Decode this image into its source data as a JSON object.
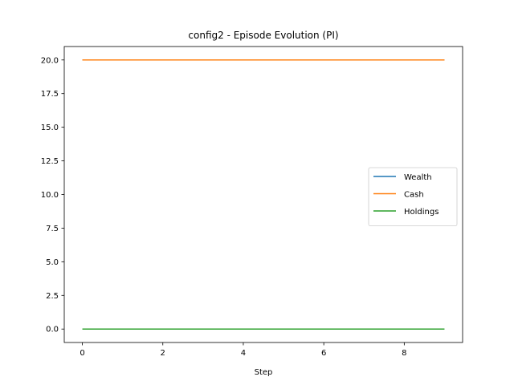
{
  "chart_data": {
    "type": "line",
    "title": "config2 - Episode Evolution (PI)",
    "xlabel": "Step",
    "ylabel": "",
    "xlim": [
      -0.45,
      9.45
    ],
    "ylim": [
      -1.0,
      21.0
    ],
    "xticks": [
      0,
      2,
      4,
      6,
      8
    ],
    "xtick_labels": [
      "0",
      "2",
      "4",
      "6",
      "8"
    ],
    "yticks": [
      0,
      2.5,
      5,
      7.5,
      10,
      12.5,
      15,
      17.5,
      20
    ],
    "ytick_labels": [
      "0.0",
      "2.5",
      "5.0",
      "7.5",
      "10.0",
      "12.5",
      "15.0",
      "17.5",
      "20.0"
    ],
    "x": [
      0,
      1,
      2,
      3,
      4,
      5,
      6,
      7,
      8,
      9
    ],
    "series": [
      {
        "name": "Wealth",
        "color": "#1f77b4",
        "values": [
          20,
          20,
          20,
          20,
          20,
          20,
          20,
          20,
          20,
          20
        ]
      },
      {
        "name": "Cash",
        "color": "#ff7f0e",
        "values": [
          20,
          20,
          20,
          20,
          20,
          20,
          20,
          20,
          20,
          20
        ]
      },
      {
        "name": "Holdings",
        "color": "#2ca02c",
        "values": [
          0,
          0,
          0,
          0,
          0,
          0,
          0,
          0,
          0,
          0
        ]
      }
    ],
    "grid": false,
    "legend_loc": "center-right"
  }
}
